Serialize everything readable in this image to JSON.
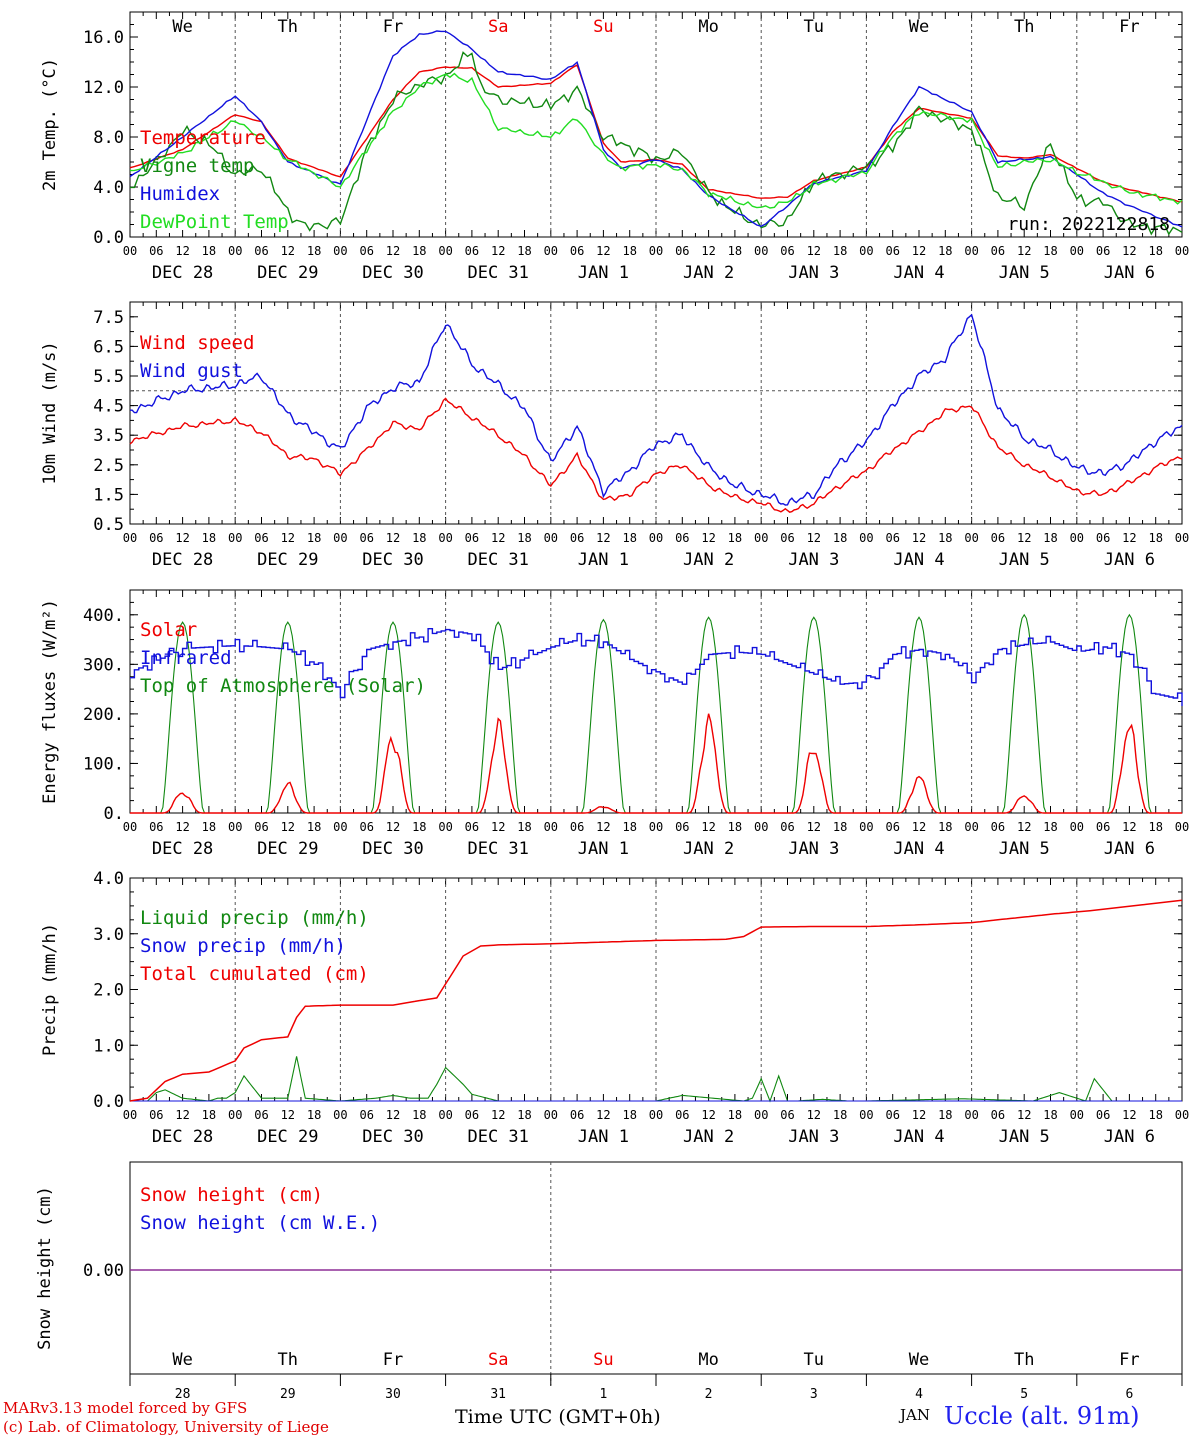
{
  "colors": {
    "red": "#ee0000",
    "dark_green": "#118811",
    "blue": "#1111dd",
    "light_green": "#22dd22",
    "purple": "#7a2aa8",
    "day_red": "#ee0000"
  },
  "time_axis": {
    "start": "2022-12-28 00 UTC",
    "hours_total": 240,
    "hour_ticks": [
      "00",
      "06",
      "12",
      "18"
    ],
    "date_labels": [
      "DEC 28",
      "DEC 29",
      "DEC 30",
      "DEC 31",
      "JAN  1",
      "JAN  2",
      "JAN  3",
      "JAN  4",
      "JAN  5",
      "JAN  6"
    ],
    "weekdays": [
      "We",
      "Th",
      "Fr",
      "Sa",
      "Su",
      "Mo",
      "Tu",
      "We",
      "Th",
      "Fr"
    ],
    "weekend_days": [
      "Sa",
      "Su"
    ],
    "day_numbers": [
      "28",
      "29",
      "30",
      "31",
      "1",
      "2",
      "3",
      "4",
      "5",
      "6"
    ],
    "new_year_boundary_hour": 96
  },
  "run_label": "run: 2022122818",
  "footer": {
    "model_line": "MARv3.13 model forced by GFS",
    "lab_line": "(c) Lab. of Climatology, University of Liege",
    "time_label": "Time UTC (GMT+0h)",
    "jan_label": "JAN",
    "station": "Uccle (alt. 91m)"
  },
  "chart_data": [
    {
      "type": "line",
      "ylabel": "2m Temp. (°C)",
      "ylim": [
        0,
        18
      ],
      "yticks": [
        0,
        4,
        8,
        12,
        16
      ],
      "ytick_labels": [
        "0.0",
        "4.0",
        "8.0",
        "12.0",
        "16.0"
      ],
      "series": [
        {
          "name": "Temperature",
          "color": "#ee0000",
          "x": [
            0,
            12,
            24,
            30,
            36,
            48,
            60,
            66,
            72,
            78,
            84,
            96,
            102,
            108,
            112,
            120,
            126,
            132,
            144,
            150,
            156,
            168,
            174,
            180,
            192,
            198,
            204,
            210,
            216,
            222,
            228,
            240
          ],
          "y": [
            5.5,
            7,
            9.8,
            9.2,
            6.3,
            4.8,
            11,
            13.2,
            13.6,
            13.5,
            12,
            12.3,
            13.8,
            7.5,
            6,
            6.2,
            5.8,
            3.8,
            3.1,
            3.2,
            4.5,
            5.6,
            8.4,
            10.3,
            9.5,
            6.5,
            6.3,
            6.6,
            5.5,
            4.4,
            3.8,
            2.8
          ]
        },
        {
          "name": "Vigne temp",
          "color": "#118811",
          "x": [
            0,
            6,
            12,
            18,
            24,
            30,
            36,
            40,
            48,
            54,
            60,
            66,
            72,
            78,
            80,
            84,
            96,
            102,
            108,
            112,
            120,
            126,
            132,
            138,
            144,
            150,
            156,
            168,
            174,
            180,
            192,
            198,
            204,
            210,
            216,
            222,
            228,
            240
          ],
          "y": [
            4,
            6,
            8.5,
            7.5,
            5,
            5.5,
            2,
            0.8,
            1.2,
            7,
            11,
            12.2,
            12.8,
            14.9,
            12,
            11,
            10.5,
            11.8,
            8,
            7.5,
            6.2,
            6.8,
            3.5,
            2,
            0.9,
            1.3,
            4.5,
            5.6,
            7.2,
            10.2,
            8.6,
            3.2,
            2.5,
            7.5,
            3,
            2.8,
            1,
            0.5
          ]
        },
        {
          "name": "Humidex",
          "color": "#1111dd",
          "x": [
            0,
            12,
            24,
            30,
            36,
            48,
            60,
            66,
            72,
            78,
            84,
            96,
            102,
            108,
            112,
            120,
            126,
            132,
            144,
            150,
            156,
            168,
            174,
            180,
            192,
            198,
            204,
            210,
            216,
            222,
            228,
            240
          ],
          "y": [
            4.8,
            8,
            11.3,
            9.2,
            6,
            4.2,
            14.5,
            16.2,
            16.5,
            15,
            13.2,
            12.6,
            14,
            7,
            5.5,
            6.2,
            5.4,
            3.3,
            0.8,
            2.5,
            4.3,
            5.3,
            8.8,
            12,
            10,
            6,
            6.2,
            6.4,
            5,
            3.5,
            2.5,
            0.8
          ]
        },
        {
          "name": "DewPoint Temp",
          "color": "#22dd22",
          "x": [
            0,
            12,
            24,
            30,
            36,
            48,
            60,
            66,
            72,
            78,
            84,
            96,
            102,
            108,
            112,
            120,
            126,
            132,
            144,
            150,
            156,
            168,
            174,
            180,
            192,
            198,
            204,
            210,
            216,
            222,
            228,
            240
          ],
          "y": [
            5.2,
            6.7,
            9.3,
            8,
            6.2,
            4,
            10,
            12,
            13,
            12.5,
            8.7,
            8,
            9.5,
            6.5,
            5.5,
            5.8,
            5.4,
            3.5,
            2.3,
            2.8,
            4.2,
            5.2,
            8,
            10,
            9.3,
            5.6,
            6,
            6.2,
            5.2,
            4.4,
            3.6,
            2.8
          ]
        }
      ]
    },
    {
      "type": "line",
      "ylabel": "10m Wind (m/s)",
      "ylim": [
        0.5,
        8.0
      ],
      "yticks": [
        0.5,
        1.5,
        2.5,
        3.5,
        4.5,
        5.5,
        6.5,
        7.5
      ],
      "ytick_labels": [
        "0.5",
        "1.5",
        "2.5",
        "3.5",
        "4.5",
        "5.5",
        "6.5",
        "7.5"
      ],
      "reference_line": 5.0,
      "series": [
        {
          "name": "Wind speed",
          "color": "#ee0000",
          "x": [
            0,
            12,
            24,
            30,
            36,
            42,
            48,
            54,
            60,
            66,
            72,
            78,
            84,
            90,
            96,
            102,
            108,
            114,
            120,
            126,
            132,
            138,
            144,
            150,
            156,
            162,
            168,
            174,
            180,
            186,
            192,
            198,
            204,
            210,
            216,
            222,
            228,
            234,
            240
          ],
          "y": [
            3.3,
            3.8,
            4,
            3.6,
            2.8,
            2.7,
            2.2,
            3,
            3.9,
            3.7,
            4.7,
            4.1,
            3.5,
            2.8,
            1.8,
            2.8,
            1.3,
            1.5,
            2.2,
            2.5,
            1.8,
            1.4,
            1.2,
            0.9,
            1.2,
            1.8,
            2.3,
            3,
            3.6,
            4.3,
            4.5,
            3.1,
            2.5,
            2.1,
            1.6,
            1.5,
            1.9,
            2.4,
            2.8
          ]
        },
        {
          "name": "Wind gust",
          "color": "#1111dd",
          "x": [
            0,
            12,
            24,
            30,
            36,
            42,
            48,
            54,
            60,
            66,
            72,
            78,
            84,
            90,
            96,
            102,
            108,
            114,
            120,
            126,
            132,
            138,
            144,
            150,
            156,
            162,
            168,
            174,
            180,
            186,
            192,
            198,
            204,
            210,
            216,
            222,
            228,
            234,
            240
          ],
          "y": [
            4.3,
            5,
            5.2,
            5.5,
            4.2,
            3.6,
            3,
            4.4,
            5.1,
            5.3,
            7.3,
            5.9,
            5.2,
            4.4,
            2.6,
            3.8,
            1.6,
            2.3,
            3.2,
            3.5,
            2.4,
            1.8,
            1.5,
            1.2,
            1.5,
            2.6,
            3.3,
            4.5,
            5.5,
            6.1,
            7.6,
            4.4,
            3.4,
            3,
            2.4,
            2.2,
            2.6,
            3.3,
            3.8
          ]
        }
      ]
    },
    {
      "type": "line",
      "ylabel": "Energy fluxes (W/m²)",
      "ylim": [
        0,
        450
      ],
      "yticks": [
        0,
        100,
        200,
        300,
        400
      ],
      "ytick_labels": [
        "0.",
        "100.",
        "200.",
        "300.",
        "400."
      ],
      "solar_peaks": [
        50,
        65,
        180,
        200,
        15,
        215,
        150,
        85,
        40,
        205
      ],
      "toa_peaks": [
        385,
        385,
        385,
        385,
        390,
        395,
        395,
        395,
        400,
        400
      ],
      "series": [
        {
          "name": "Solar",
          "color": "#ee0000"
        },
        {
          "name": "Infrared",
          "color": "#1111dd",
          "x": [
            0,
            12,
            24,
            30,
            36,
            42,
            48,
            54,
            60,
            66,
            72,
            78,
            84,
            96,
            102,
            108,
            114,
            120,
            126,
            132,
            138,
            144,
            150,
            156,
            162,
            168,
            174,
            180,
            186,
            192,
            198,
            204,
            210,
            216,
            222,
            228,
            234,
            240
          ],
          "y": [
            285,
            332,
            338,
            335,
            330,
            300,
            245,
            330,
            345,
            355,
            370,
            360,
            290,
            335,
            350,
            345,
            310,
            285,
            260,
            320,
            325,
            320,
            300,
            280,
            260,
            265,
            320,
            330,
            320,
            275,
            330,
            340,
            345,
            325,
            335,
            320,
            240,
            228
          ]
        },
        {
          "name": "Top of Atmosphere (Solar)",
          "color": "#118811"
        }
      ]
    },
    {
      "type": "line",
      "ylabel": "Precip (mm/h)",
      "ylim": [
        0,
        4
      ],
      "yticks": [
        0,
        1,
        2,
        3,
        4
      ],
      "ytick_labels": [
        "0.0",
        "1.0",
        "2.0",
        "3.0",
        "4.0"
      ],
      "series": [
        {
          "name": "Liquid precip (mm/h)",
          "color": "#118811",
          "x": [
            0,
            4,
            6,
            8,
            12,
            18,
            20,
            22,
            24,
            26,
            30,
            34,
            36,
            38,
            40,
            48,
            56,
            60,
            64,
            68,
            70,
            72,
            74,
            76,
            78,
            84,
            96,
            120,
            126,
            140,
            142,
            144,
            146,
            148,
            150,
            152,
            158,
            164,
            168,
            190,
            206,
            212,
            218,
            220,
            224,
            240
          ],
          "y": [
            0,
            0,
            0.15,
            0.2,
            0.05,
            0,
            0.05,
            0.05,
            0.15,
            0.45,
            0.05,
            0.05,
            0.05,
            0.8,
            0.05,
            0,
            0.05,
            0.1,
            0.05,
            0.05,
            0.3,
            0.6,
            0.45,
            0.3,
            0.12,
            0,
            0,
            0,
            0.1,
            0,
            0.05,
            0.4,
            0,
            0.45,
            0,
            0,
            0.03,
            0,
            0,
            0.04,
            0,
            0.15,
            0,
            0.4,
            0,
            0
          ]
        },
        {
          "name": "Snow precip (mm/h)",
          "color": "#1111dd",
          "x": [
            0,
            240
          ],
          "y": [
            0,
            0
          ]
        },
        {
          "name": "Total cumulated (cm)",
          "color": "#ee0000",
          "x": [
            0,
            4,
            8,
            12,
            18,
            24,
            26,
            30,
            36,
            38,
            40,
            48,
            60,
            66,
            70,
            72,
            76,
            80,
            84,
            96,
            108,
            120,
            136,
            140,
            144,
            156,
            168,
            180,
            192,
            210,
            220,
            240
          ],
          "y": [
            0,
            0.05,
            0.35,
            0.48,
            0.52,
            0.72,
            0.95,
            1.1,
            1.15,
            1.5,
            1.7,
            1.72,
            1.72,
            1.8,
            1.85,
            2.1,
            2.6,
            2.78,
            2.8,
            2.82,
            2.85,
            2.88,
            2.9,
            2.95,
            3.12,
            3.13,
            3.13,
            3.16,
            3.2,
            3.35,
            3.42,
            3.6
          ]
        }
      ]
    },
    {
      "type": "line",
      "ylabel": "Snow height (cm)",
      "ytick_labels": [
        "0.00"
      ],
      "series": [
        {
          "name": "Snow height (cm)",
          "color": "#ee0000",
          "x": [
            0,
            240
          ],
          "y": [
            0,
            0
          ]
        },
        {
          "name": "Snow height (cm W.E.)",
          "color": "#1111dd",
          "x": [
            0,
            240
          ],
          "y": [
            0,
            0
          ]
        }
      ]
    }
  ]
}
